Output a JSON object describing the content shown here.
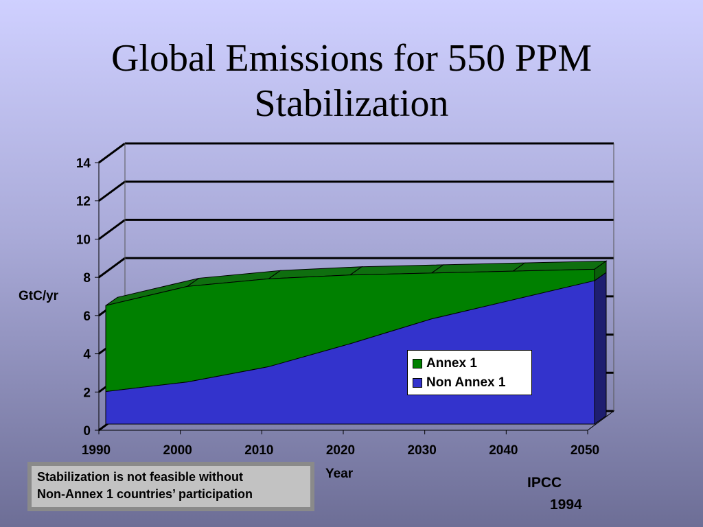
{
  "title_lines": [
    "Global Emissions for 550 PPM",
    "Stabilization"
  ],
  "chart_data": {
    "type": "area",
    "stacked": true,
    "style": "3d",
    "x": [
      1990,
      2000,
      2010,
      2020,
      2030,
      2040,
      2050
    ],
    "x_tick_labels": [
      "1990",
      "2000",
      "2010",
      "2020",
      "2030",
      "2040",
      "2050"
    ],
    "xlabel": "Year",
    "ylabel": "GtC/yr",
    "ylim": [
      0,
      14
    ],
    "y_ticks": [
      0,
      2,
      4,
      6,
      8,
      10,
      12,
      14
    ],
    "y_tick_labels": [
      "0",
      "2",
      "4",
      "6",
      "8",
      "10",
      "12",
      "14"
    ],
    "grid": true,
    "legend_position": "inside-lower-right",
    "series": [
      {
        "name": "Non Annex 1",
        "color": "#3333cc",
        "values": [
          1.7,
          2.2,
          3.0,
          4.2,
          5.5,
          6.5,
          7.5
        ]
      },
      {
        "name": "Annex 1",
        "color": "#008000",
        "values": [
          4.5,
          5.0,
          4.6,
          3.6,
          2.4,
          1.5,
          0.6
        ]
      }
    ]
  },
  "legend": [
    {
      "label": "Annex 1",
      "color": "#008000"
    },
    {
      "label": "Non Annex 1",
      "color": "#3333cc"
    }
  ],
  "note_lines": [
    "Stabilization is not feasible without",
    "Non-Annex 1 countries’ participation"
  ],
  "source_lines": [
    "IPCC",
    "1994"
  ],
  "colors": {
    "annex_side": "#0a5e0a",
    "annex_top": "#0f6f0f",
    "non_annex_side": "#1e1e70"
  }
}
